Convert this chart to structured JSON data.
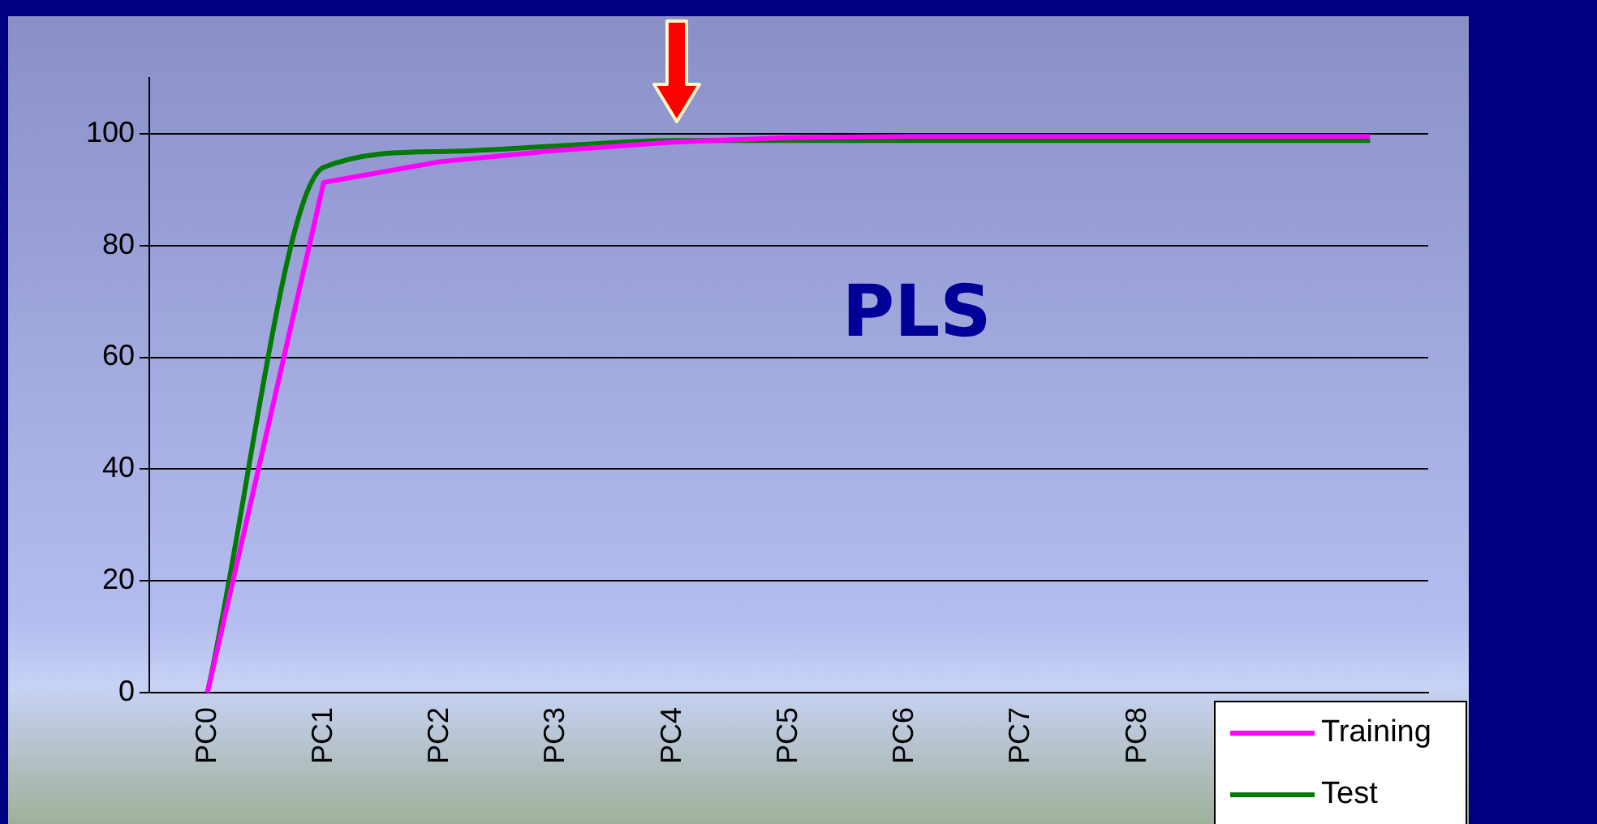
{
  "chart_data": {
    "type": "line",
    "categories": [
      "PC0",
      "PC1",
      "PC2",
      "PC3",
      "PC4",
      "PC5",
      "PC6",
      "PC7",
      "PC8",
      null,
      null
    ],
    "series": [
      {
        "name": "Training",
        "color": "#ff00ff",
        "values": [
          0,
          91.3,
          95,
          97,
          98.5,
          99.3,
          99.5,
          99.5,
          99.5,
          99.5,
          99.5
        ]
      },
      {
        "name": "Test",
        "color": "#007a00",
        "values": [
          0,
          94,
          96.8,
          97.8,
          98.8,
          98.8,
          98.8,
          98.8,
          98.8,
          98.8,
          98.8
        ]
      }
    ],
    "ylim": [
      0,
      110
    ],
    "yticks": [
      0,
      20,
      40,
      60,
      80,
      100
    ],
    "grid": "y",
    "legend": "bottom right",
    "marker": "none",
    "line_style": "solid",
    "annotations": [
      "PLS"
    ]
  }
}
